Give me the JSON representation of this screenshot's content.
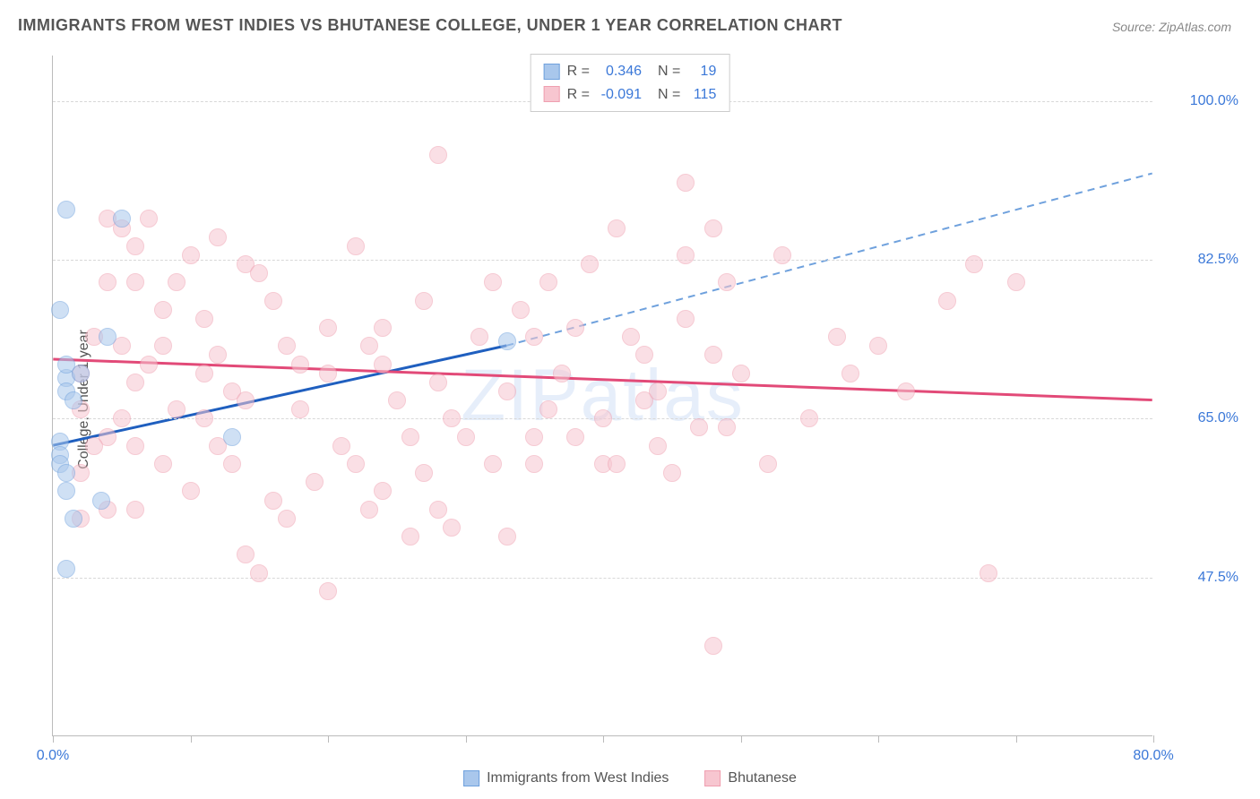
{
  "title": "IMMIGRANTS FROM WEST INDIES VS BHUTANESE COLLEGE, UNDER 1 YEAR CORRELATION CHART",
  "source": "Source: ZipAtlas.com",
  "ylabel": "College, Under 1 year",
  "watermark": "ZIPatlas",
  "chart": {
    "type": "scatter",
    "xlim": [
      0,
      80
    ],
    "ylim": [
      30,
      105
    ],
    "xticks": [
      0,
      10,
      20,
      30,
      40,
      50,
      60,
      70,
      80
    ],
    "xtick_labels": {
      "0": "0.0%",
      "80": "80.0%"
    },
    "yticks": [
      47.5,
      65.0,
      82.5,
      100.0
    ],
    "ytick_labels": [
      "47.5%",
      "65.0%",
      "82.5%",
      "100.0%"
    ],
    "grid_color": "#d8d8d8",
    "axis_color": "#bbbbbb",
    "label_color": "#3b78d8",
    "background_color": "#ffffff",
    "marker_radius": 10,
    "marker_opacity": 0.55,
    "series": [
      {
        "name": "Immigrants from West Indies",
        "color_fill": "#a9c7ec",
        "color_stroke": "#6fa1dd",
        "R": "0.346",
        "N": "19",
        "trend": {
          "x1": 0,
          "y1": 62,
          "x2": 33,
          "y2": 73,
          "x2_ext": 80,
          "y2_ext": 92,
          "solid_color": "#1f5fbf",
          "dash_color": "#6fa1dd",
          "width": 3
        },
        "points": [
          [
            1,
            88
          ],
          [
            0.5,
            77
          ],
          [
            1,
            69.5
          ],
          [
            1,
            68
          ],
          [
            0.5,
            62.5
          ],
          [
            0.5,
            61
          ],
          [
            0.5,
            60
          ],
          [
            1,
            59
          ],
          [
            1,
            57
          ],
          [
            3.5,
            56
          ],
          [
            1.5,
            54
          ],
          [
            1,
            48.5
          ],
          [
            2,
            70
          ],
          [
            4,
            74
          ],
          [
            33,
            73.5
          ],
          [
            13,
            63
          ],
          [
            5,
            87
          ],
          [
            1,
            71
          ],
          [
            1.5,
            67
          ]
        ]
      },
      {
        "name": "Bhutanese",
        "color_fill": "#f7c6d0",
        "color_stroke": "#ef9fb0",
        "R": "-0.091",
        "N": "115",
        "trend": {
          "x1": 0,
          "y1": 71.5,
          "x2": 80,
          "y2": 67,
          "solid_color": "#e24a78",
          "width": 3
        },
        "points": [
          [
            28,
            94
          ],
          [
            46,
            91
          ],
          [
            2,
            70
          ],
          [
            4,
            87
          ],
          [
            5,
            86
          ],
          [
            7,
            87
          ],
          [
            6,
            84
          ],
          [
            4,
            80
          ],
          [
            6,
            80
          ],
          [
            10,
            83
          ],
          [
            9,
            80
          ],
          [
            12,
            85
          ],
          [
            14,
            82
          ],
          [
            15,
            81
          ],
          [
            3,
            74
          ],
          [
            5,
            73
          ],
          [
            7,
            71
          ],
          [
            2,
            66
          ],
          [
            4,
            63
          ],
          [
            6,
            62
          ],
          [
            8,
            77
          ],
          [
            11,
            76
          ],
          [
            16,
            78
          ],
          [
            17,
            73
          ],
          [
            18,
            71
          ],
          [
            20,
            75
          ],
          [
            22,
            84
          ],
          [
            24,
            71
          ],
          [
            25,
            67
          ],
          [
            26,
            63
          ],
          [
            28,
            69
          ],
          [
            29,
            65
          ],
          [
            30,
            63
          ],
          [
            32,
            60
          ],
          [
            21,
            62
          ],
          [
            22,
            60
          ],
          [
            24,
            57
          ],
          [
            27,
            59
          ],
          [
            28,
            55
          ],
          [
            29,
            53
          ],
          [
            16,
            56
          ],
          [
            17,
            54
          ],
          [
            14,
            50
          ],
          [
            15,
            48
          ],
          [
            20,
            46
          ],
          [
            12,
            62
          ],
          [
            13,
            60
          ],
          [
            10,
            57
          ],
          [
            8,
            60
          ],
          [
            6,
            55
          ],
          [
            4,
            55
          ],
          [
            2,
            54
          ],
          [
            11,
            70
          ],
          [
            18,
            66
          ],
          [
            23,
            73
          ],
          [
            31,
            74
          ],
          [
            33,
            52
          ],
          [
            35,
            63
          ],
          [
            36,
            66
          ],
          [
            37,
            70
          ],
          [
            38,
            75
          ],
          [
            40,
            60
          ],
          [
            40,
            65
          ],
          [
            41,
            86
          ],
          [
            42,
            74
          ],
          [
            43,
            67
          ],
          [
            44,
            62
          ],
          [
            45,
            59
          ],
          [
            46,
            76
          ],
          [
            47,
            64
          ],
          [
            48,
            40
          ],
          [
            49,
            80
          ],
          [
            50,
            70
          ],
          [
            32,
            80
          ],
          [
            34,
            77
          ],
          [
            35,
            74
          ],
          [
            53,
            83
          ],
          [
            55,
            65
          ],
          [
            57,
            74
          ],
          [
            58,
            70
          ],
          [
            60,
            73
          ],
          [
            62,
            68
          ],
          [
            65,
            78
          ],
          [
            67,
            82
          ],
          [
            68,
            48
          ],
          [
            70,
            80
          ],
          [
            13,
            68
          ],
          [
            19,
            58
          ],
          [
            23,
            55
          ],
          [
            26,
            52
          ],
          [
            9,
            66
          ],
          [
            11,
            65
          ],
          [
            14,
            67
          ],
          [
            33,
            68
          ],
          [
            35,
            60
          ],
          [
            38,
            63
          ],
          [
            41,
            60
          ],
          [
            43,
            72
          ],
          [
            48,
            72
          ],
          [
            52,
            60
          ],
          [
            46,
            83
          ],
          [
            48,
            86
          ],
          [
            39,
            82
          ],
          [
            36,
            80
          ],
          [
            12,
            72
          ],
          [
            6,
            69
          ],
          [
            8,
            73
          ],
          [
            5,
            65
          ],
          [
            3,
            62
          ],
          [
            2,
            59
          ],
          [
            20,
            70
          ],
          [
            24,
            75
          ],
          [
            27,
            78
          ],
          [
            49,
            64
          ],
          [
            44,
            68
          ]
        ]
      }
    ]
  },
  "legend_bottom": [
    {
      "label": "Immigrants from West Indies",
      "fill": "#a9c7ec",
      "stroke": "#6fa1dd"
    },
    {
      "label": "Bhutanese",
      "fill": "#f7c6d0",
      "stroke": "#ef9fb0"
    }
  ]
}
